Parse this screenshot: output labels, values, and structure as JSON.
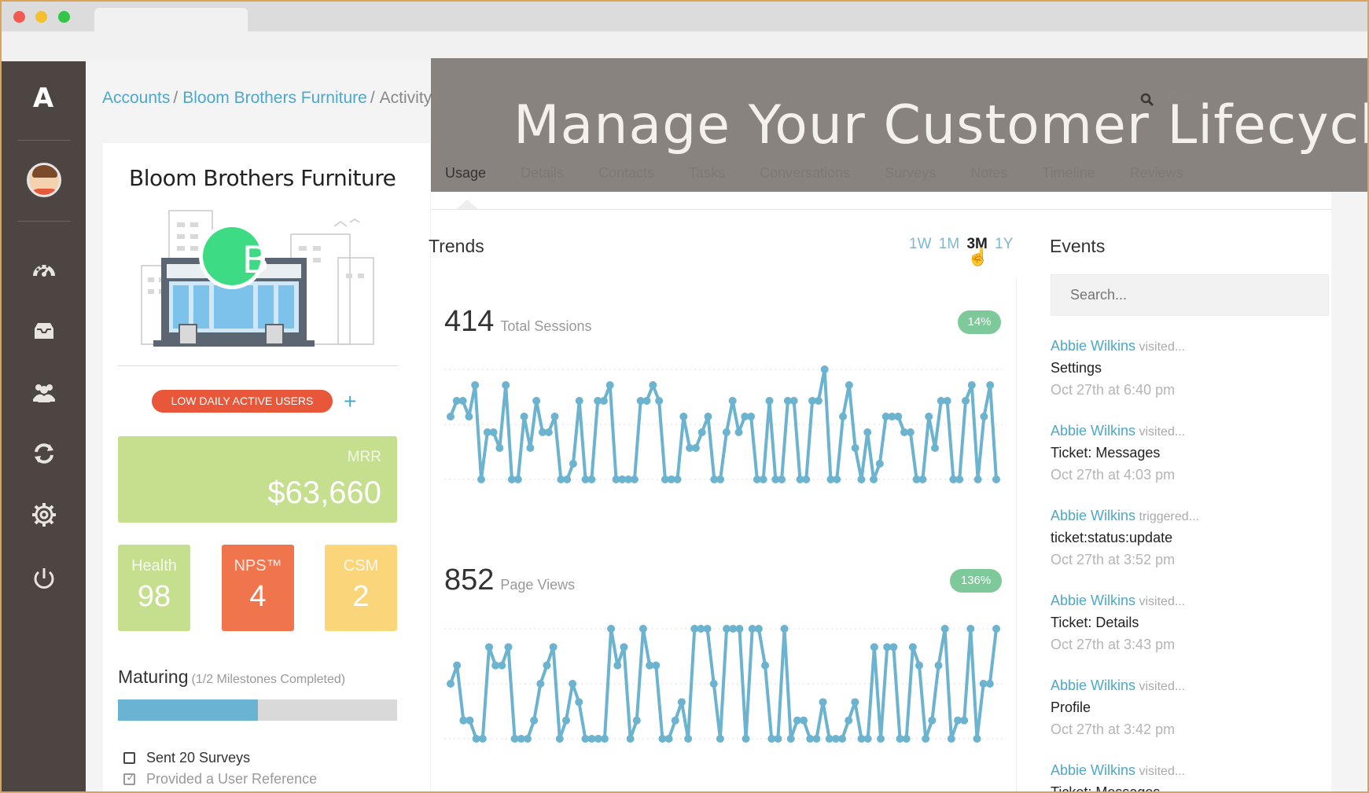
{
  "breadcrumb": {
    "accounts": "Accounts",
    "company": "Bloom Brothers Furniture",
    "current": "Activity",
    "separator": "/"
  },
  "banner": {
    "title": "Manage Your Customer Lifecycle",
    "search_placeholder": "Search..."
  },
  "tabs": [
    {
      "label": "Usage",
      "active": true
    },
    {
      "label": "Details"
    },
    {
      "label": "Contacts"
    },
    {
      "label": "Tasks"
    },
    {
      "label": "Conversations"
    },
    {
      "label": "Surveys"
    },
    {
      "label": "Notes"
    },
    {
      "label": "Timeline"
    },
    {
      "label": "Reviews"
    }
  ],
  "company": {
    "name": "Bloom Brothers Furniture",
    "initial": "B",
    "badge": "LOW DAILY ACTIVE USERS",
    "add": "+",
    "mrr_label": "MRR",
    "mrr_value": "$63,660",
    "health_label": "Health",
    "health_value": "98",
    "nps_label": "NPS™",
    "nps_value": "4",
    "csm_label": "CSM",
    "csm_value": "2",
    "stage": "Maturing",
    "milestones": "(1/2 Milestones Completed)",
    "milestone_progress": 0.5,
    "checklist": [
      {
        "label": "Sent 20 Surveys",
        "done": false
      },
      {
        "label": "Provided a User Reference",
        "done": true
      }
    ]
  },
  "trends": {
    "title": "Trends",
    "ranges": [
      "1W",
      "1M",
      "3M",
      "1Y"
    ],
    "selected_range": "3M",
    "sessions_value": "414",
    "sessions_label": "Total Sessions",
    "sessions_change": "14%",
    "pageviews_value": "852",
    "pageviews_label": "Page Views",
    "pageviews_change": "136%"
  },
  "chart_data": [
    {
      "type": "line",
      "series": [
        {
          "values": [
            4,
            5,
            5,
            4,
            6,
            0,
            3,
            3,
            2,
            6,
            0,
            0,
            4,
            2,
            5,
            3,
            3,
            4,
            0,
            0,
            1,
            5,
            0,
            0,
            5,
            5,
            6,
            0,
            0,
            0,
            0,
            5,
            5,
            6,
            5,
            0,
            0,
            0,
            4,
            2,
            2,
            3,
            4,
            0,
            0,
            3,
            5,
            3,
            4,
            4,
            0,
            0,
            5,
            0,
            0,
            5,
            5,
            0,
            0,
            5,
            5,
            7,
            0,
            0,
            4,
            6,
            2,
            0,
            3,
            0,
            1,
            4,
            4,
            4,
            3,
            3,
            0,
            0,
            4,
            2,
            5,
            5,
            0,
            0,
            5,
            6,
            0,
            4,
            6,
            0
          ]
        }
      ],
      "ylim": [
        0,
        7
      ],
      "color": "#6bb3cf"
    },
    {
      "type": "line",
      "series": [
        {
          "values": [
            3,
            4,
            1,
            1,
            0,
            0,
            5,
            4,
            4,
            5,
            0,
            0,
            0,
            1,
            3,
            4,
            5,
            0,
            1,
            3,
            2,
            0,
            0,
            0,
            0,
            6,
            4,
            5,
            0,
            1,
            6,
            4,
            4,
            0,
            0,
            1,
            2,
            0,
            6,
            6,
            6,
            3,
            0,
            6,
            6,
            6,
            0,
            6,
            6,
            4,
            0,
            0,
            6,
            0,
            1,
            1,
            0,
            0,
            2,
            0,
            0,
            0,
            1,
            2,
            0,
            0,
            5,
            0,
            5,
            5,
            0,
            0,
            5,
            4,
            0,
            1,
            4,
            6,
            0,
            1,
            1,
            6,
            0,
            3,
            3,
            6
          ]
        }
      ],
      "ylim": [
        0,
        6
      ],
      "color": "#6bb3cf"
    }
  ],
  "events": {
    "title": "Events",
    "search_placeholder": "Search...",
    "items": [
      {
        "who": "Abbie Wilkins",
        "action": "visited...",
        "what": "Settings",
        "when": "Oct 27th at 6:40 pm"
      },
      {
        "who": "Abbie Wilkins",
        "action": "visited...",
        "what": "Ticket: Messages",
        "when": "Oct 27th at 4:03 pm"
      },
      {
        "who": "Abbie Wilkins",
        "action": "triggered...",
        "what": "ticket:status:update",
        "when": "Oct 27th at 3:52 pm"
      },
      {
        "who": "Abbie Wilkins",
        "action": "visited...",
        "what": "Ticket: Details",
        "when": "Oct 27th at 3:43 pm"
      },
      {
        "who": "Abbie Wilkins",
        "action": "visited...",
        "what": "Profile",
        "when": "Oct 27th at 3:42 pm"
      },
      {
        "who": "Abbie Wilkins",
        "action": "visited...",
        "what": "Ticket: Messages",
        "when": ""
      }
    ]
  },
  "colors": {
    "accent": "#4ea8c9",
    "sidebar": "#4c4541",
    "mrr": "#c5df8f",
    "nps": "#f0754d",
    "csm": "#fad57a",
    "badge": "#e8573a",
    "pct": "#7dc999"
  },
  "icons": [
    "logo-a-icon",
    "dashboard-gauge-icon",
    "inbox-icon",
    "users-icon",
    "sync-icon",
    "gear-icon",
    "power-icon",
    "search-icon",
    "checkbox-icon"
  ]
}
